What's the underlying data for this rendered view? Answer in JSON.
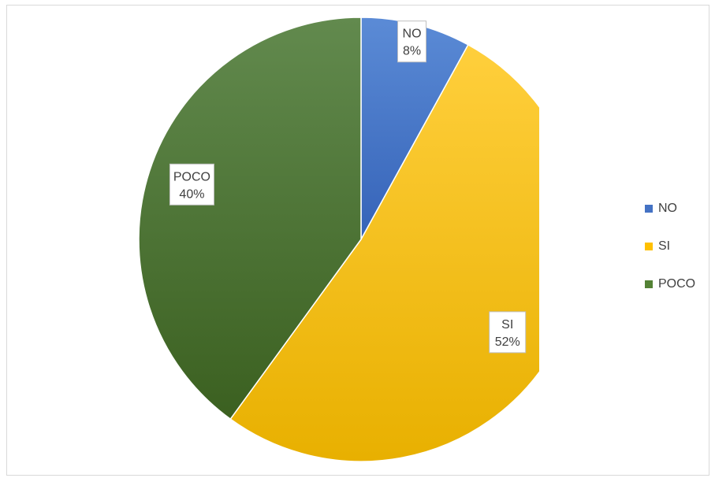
{
  "chart_data": {
    "type": "pie",
    "title": "",
    "start_angle_deg": 0,
    "slices": [
      {
        "label": "NO",
        "value": 8,
        "percent_label": "8%",
        "color": "#4472c4"
      },
      {
        "label": "SI",
        "value": 52,
        "percent_label": "52%",
        "color": "#ffc000"
      },
      {
        "label": "POCO",
        "value": 40,
        "percent_label": "40%",
        "color": "#548235"
      }
    ],
    "legend": {
      "position": "right",
      "entries": [
        "NO",
        "SI",
        "POCO"
      ]
    }
  }
}
